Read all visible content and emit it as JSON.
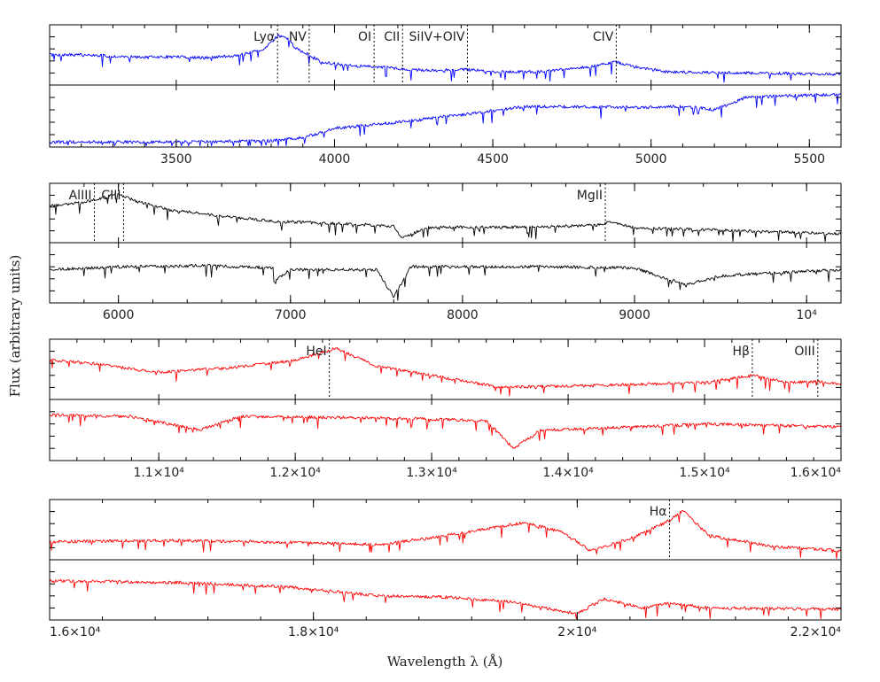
{
  "figure": {
    "xlabel": "Wavelength λ (Å)",
    "ylabel": "Flux (arbitrary units)"
  },
  "chart_data": [
    {
      "type": "line",
      "panel": 1,
      "color": "#0000ff",
      "xlim": [
        3100,
        5600
      ],
      "xticks": [
        {
          "value": 3500,
          "label": "3500"
        },
        {
          "value": 4000,
          "label": "4000"
        },
        {
          "value": 4500,
          "label": "4500"
        },
        {
          "value": 5000,
          "label": "5000"
        },
        {
          "value": 5500,
          "label": "5500"
        }
      ],
      "lines": [
        {
          "label": "Lyα",
          "wavelength": 3820
        },
        {
          "label": "NV",
          "wavelength": 3920
        },
        {
          "label": "OI",
          "wavelength": 4125
        },
        {
          "label": "CII",
          "wavelength": 4215
        },
        {
          "label": "SiIV+OIV",
          "wavelength": 4420
        },
        {
          "label": "CIV",
          "wavelength": 4890
        }
      ],
      "series": [
        {
          "values": [
            [
              3100,
              0.5
            ],
            [
              3200,
              0.5
            ],
            [
              3300,
              0.48
            ],
            [
              3400,
              0.46
            ],
            [
              3500,
              0.47
            ],
            [
              3600,
              0.45
            ],
            [
              3700,
              0.5
            ],
            [
              3780,
              0.6
            ],
            [
              3820,
              0.82
            ],
            [
              3850,
              0.78
            ],
            [
              3880,
              0.6
            ],
            [
              3920,
              0.5
            ],
            [
              3960,
              0.38
            ],
            [
              4050,
              0.32
            ],
            [
              4150,
              0.3
            ],
            [
              4215,
              0.27
            ],
            [
              4300,
              0.24
            ],
            [
              4420,
              0.26
            ],
            [
              4500,
              0.22
            ],
            [
              4650,
              0.22
            ],
            [
              4800,
              0.3
            ],
            [
              4890,
              0.38
            ],
            [
              4950,
              0.3
            ],
            [
              5050,
              0.22
            ],
            [
              5300,
              0.2
            ],
            [
              5600,
              0.18
            ]
          ]
        },
        {
          "values": [
            [
              3100,
              0.08
            ],
            [
              3500,
              0.08
            ],
            [
              3800,
              0.1
            ],
            [
              3900,
              0.15
            ],
            [
              4000,
              0.3
            ],
            [
              4200,
              0.4
            ],
            [
              4400,
              0.52
            ],
            [
              4600,
              0.65
            ],
            [
              4800,
              0.65
            ],
            [
              5000,
              0.64
            ],
            [
              5100,
              0.66
            ],
            [
              5200,
              0.6
            ],
            [
              5300,
              0.8
            ],
            [
              5400,
              0.82
            ],
            [
              5600,
              0.85
            ]
          ]
        }
      ]
    },
    {
      "type": "line",
      "panel": 2,
      "color": "#000000",
      "xlim": [
        5600,
        10200
      ],
      "xticks": [
        {
          "value": 6000,
          "label": "6000"
        },
        {
          "value": 7000,
          "label": "7000"
        },
        {
          "value": 8000,
          "label": "8000"
        },
        {
          "value": 9000,
          "label": "9000"
        },
        {
          "value": 10000,
          "label": "10⁴"
        }
      ],
      "lines": [
        {
          "label": "AlIII",
          "wavelength": 5860
        },
        {
          "label": "CIII",
          "wavelength": 6030
        },
        {
          "label": "MgII",
          "wavelength": 8830
        }
      ],
      "series": [
        {
          "values": [
            [
              5600,
              0.62
            ],
            [
              5800,
              0.68
            ],
            [
              6000,
              0.82
            ],
            [
              6100,
              0.7
            ],
            [
              6300,
              0.55
            ],
            [
              6600,
              0.45
            ],
            [
              6900,
              0.36
            ],
            [
              7200,
              0.33
            ],
            [
              7600,
              0.28
            ],
            [
              7650,
              0.08
            ],
            [
              7800,
              0.26
            ],
            [
              8400,
              0.26
            ],
            [
              8800,
              0.3
            ],
            [
              8850,
              0.35
            ],
            [
              9000,
              0.25
            ],
            [
              9400,
              0.22
            ],
            [
              9800,
              0.18
            ],
            [
              10200,
              0.15
            ]
          ]
        },
        {
          "values": [
            [
              5600,
              0.55
            ],
            [
              6000,
              0.6
            ],
            [
              6500,
              0.62
            ],
            [
              6900,
              0.58
            ],
            [
              6900,
              0.35
            ],
            [
              7000,
              0.55
            ],
            [
              7500,
              0.55
            ],
            [
              7600,
              0.1
            ],
            [
              7700,
              0.6
            ],
            [
              8500,
              0.6
            ],
            [
              9000,
              0.58
            ],
            [
              9300,
              0.3
            ],
            [
              9500,
              0.45
            ],
            [
              9800,
              0.5
            ],
            [
              10200,
              0.55
            ]
          ]
        }
      ]
    },
    {
      "type": "line",
      "panel": 3,
      "color": "#ff0000",
      "xlim": [
        10200,
        16000
      ],
      "xticks": [
        {
          "value": 11000,
          "label": "1.1×10⁴"
        },
        {
          "value": 12000,
          "label": "1.2×10⁴"
        },
        {
          "value": 13000,
          "label": "1.3×10⁴"
        },
        {
          "value": 14000,
          "label": "1.4×10⁴"
        },
        {
          "value": 15000,
          "label": "1.5×10⁴"
        },
        {
          "value": 16000,
          "label": "1.6×10⁴"
        }
      ],
      "lines": [
        {
          "label": "HeI",
          "wavelength": 12250
        },
        {
          "label": "Hβ",
          "wavelength": 15350
        },
        {
          "label": "OIII",
          "wavelength": 15830
        }
      ],
      "series": [
        {
          "values": [
            [
              10200,
              0.65
            ],
            [
              10500,
              0.6
            ],
            [
              11000,
              0.45
            ],
            [
              11500,
              0.52
            ],
            [
              12000,
              0.65
            ],
            [
              12300,
              0.85
            ],
            [
              12600,
              0.55
            ],
            [
              13000,
              0.4
            ],
            [
              13500,
              0.2
            ],
            [
              14000,
              0.22
            ],
            [
              14500,
              0.25
            ],
            [
              15000,
              0.28
            ],
            [
              15350,
              0.4
            ],
            [
              15600,
              0.28
            ],
            [
              15830,
              0.3
            ],
            [
              16000,
              0.25
            ]
          ]
        },
        {
          "values": [
            [
              10200,
              0.75
            ],
            [
              10800,
              0.72
            ],
            [
              11300,
              0.5
            ],
            [
              11600,
              0.72
            ],
            [
              12500,
              0.7
            ],
            [
              13000,
              0.68
            ],
            [
              13400,
              0.65
            ],
            [
              13600,
              0.2
            ],
            [
              13800,
              0.5
            ],
            [
              14500,
              0.55
            ],
            [
              15000,
              0.6
            ],
            [
              16000,
              0.55
            ]
          ]
        }
      ]
    },
    {
      "type": "line",
      "panel": 4,
      "color": "#ff0000",
      "xlim": [
        16000,
        22000
      ],
      "xticks": [
        {
          "value": 16000,
          "label": "1.6×10⁴"
        },
        {
          "value": 18000,
          "label": "1.8×10⁴"
        },
        {
          "value": 20000,
          "label": "2×10⁴"
        },
        {
          "value": 22000,
          "label": "2.2×10⁴"
        }
      ],
      "lines": [
        {
          "label": "Hα",
          "wavelength": 20700
        }
      ],
      "series": [
        {
          "values": [
            [
              16000,
              0.3
            ],
            [
              17000,
              0.32
            ],
            [
              18000,
              0.28
            ],
            [
              18500,
              0.25
            ],
            [
              19000,
              0.4
            ],
            [
              19600,
              0.62
            ],
            [
              19900,
              0.45
            ],
            [
              20100,
              0.15
            ],
            [
              20400,
              0.35
            ],
            [
              20700,
              0.65
            ],
            [
              20800,
              0.82
            ],
            [
              21000,
              0.4
            ],
            [
              21500,
              0.22
            ],
            [
              22000,
              0.15
            ]
          ]
        },
        {
          "values": [
            [
              16000,
              0.65
            ],
            [
              17000,
              0.62
            ],
            [
              17800,
              0.55
            ],
            [
              18500,
              0.4
            ],
            [
              19000,
              0.38
            ],
            [
              19500,
              0.3
            ],
            [
              20000,
              0.1
            ],
            [
              20200,
              0.35
            ],
            [
              20500,
              0.2
            ],
            [
              20700,
              0.28
            ],
            [
              21000,
              0.2
            ],
            [
              22000,
              0.18
            ]
          ]
        }
      ]
    }
  ]
}
